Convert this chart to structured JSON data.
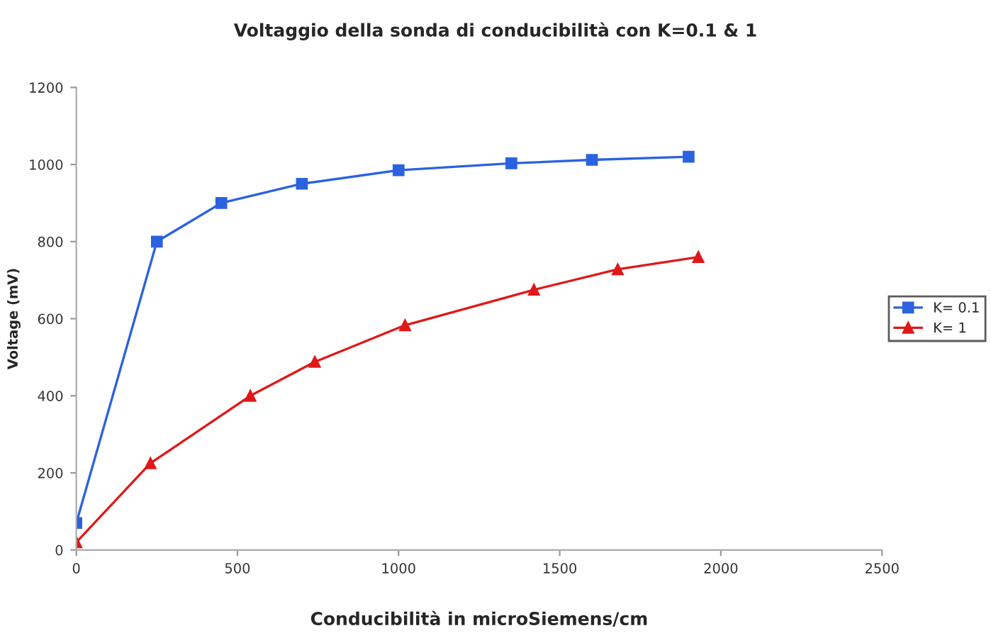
{
  "chart_data": {
    "type": "line",
    "title": "Voltaggio della sonda di conducibilità con K=0.1 & 1",
    "xlabel": "Conducibilità in microSiemens/cm",
    "ylabel": "Voltage (mV)",
    "series": [
      {
        "name": "K= 0.1",
        "color": "#2a62e0",
        "marker": "square",
        "x": [
          0,
          250,
          450,
          700,
          1000,
          1350,
          1600,
          1900
        ],
        "values": [
          70,
          800,
          900,
          950,
          985,
          1003,
          1012,
          1020
        ]
      },
      {
        "name": "K= 1",
        "color": "#e01818",
        "marker": "triangle",
        "x": [
          0,
          230,
          540,
          740,
          1020,
          1420,
          1680,
          1930
        ],
        "values": [
          20,
          225,
          400,
          488,
          583,
          675,
          728,
          760
        ]
      }
    ],
    "xlim": [
      0,
      2500
    ],
    "xticks": [
      0,
      500,
      1000,
      1500,
      2000,
      2500
    ],
    "ylim": [
      0,
      1200
    ],
    "yticks": [
      0,
      200,
      400,
      600,
      800,
      1000,
      1200
    ],
    "legend": "right",
    "grid": false,
    "line_style": "solid"
  }
}
